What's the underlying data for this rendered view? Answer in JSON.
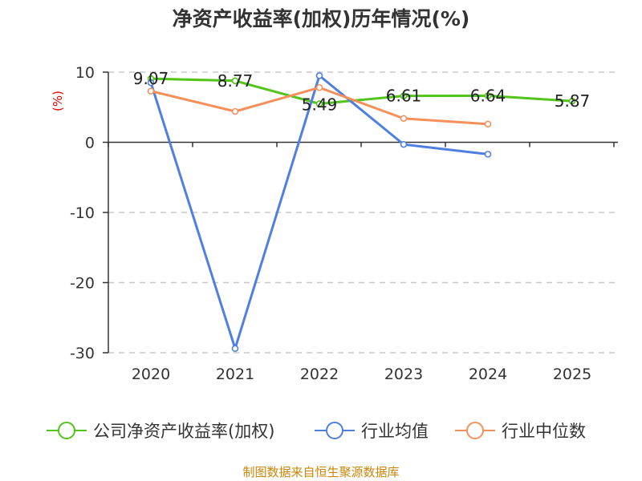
{
  "chart_data": {
    "type": "line",
    "title": "净资产收益率(加权)历年情况(%)",
    "ylabel": "(%)",
    "xlabel": "",
    "categories": [
      "2020",
      "2021",
      "2022",
      "2023",
      "2024",
      "2025"
    ],
    "ylim": [
      -30,
      10
    ],
    "yticks": [
      "10",
      "0",
      "-10",
      "-20",
      "-30"
    ],
    "grid": true,
    "legend_position": "bottom",
    "series": [
      {
        "name": "公司净资产收益率(加权)",
        "color": "#52c41a",
        "values": [
          9.07,
          8.77,
          5.49,
          6.61,
          6.64,
          5.87
        ],
        "labels": [
          "9.07",
          "8.77",
          "5.49",
          "6.61",
          "6.64",
          "5.87"
        ]
      },
      {
        "name": "行业均值",
        "color": "#4f7fdf",
        "values": [
          8.5,
          -29.4,
          9.5,
          -0.3,
          -1.7,
          null
        ]
      },
      {
        "name": "行业中位数",
        "color": "#f5905a",
        "values": [
          7.3,
          4.4,
          7.8,
          3.4,
          2.6,
          null
        ]
      }
    ]
  },
  "source_text": "制图数据来自恒生聚源数据库"
}
